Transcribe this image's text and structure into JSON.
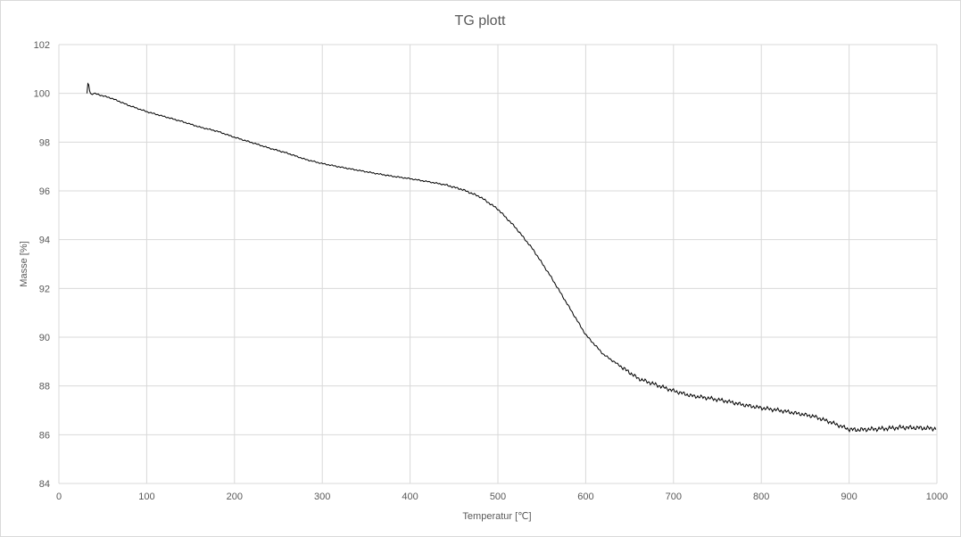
{
  "chart_data": {
    "type": "line",
    "title": "TG plott",
    "xlabel": "Temperatur  [℃]",
    "ylabel": "Masse [%]",
    "xlim": [
      0,
      1000
    ],
    "ylim": [
      84,
      102
    ],
    "xticks": [
      "0",
      "100",
      "200",
      "300",
      "400",
      "500",
      "600",
      "700",
      "800",
      "900",
      "1000"
    ],
    "yticks": [
      "84",
      "86",
      "88",
      "90",
      "92",
      "94",
      "96",
      "98",
      "100",
      "102"
    ],
    "grid": true,
    "legend": "none",
    "colors": {
      "line": "#000000",
      "grid": "#d9d9d9",
      "text": "#595959"
    },
    "series": [
      {
        "x": [
          32,
          33,
          34,
          35,
          36,
          38,
          40,
          45,
          50,
          60,
          80,
          100,
          120,
          140,
          160,
          180,
          200,
          220,
          240,
          260,
          280,
          300,
          320,
          340,
          360,
          380,
          400,
          420,
          440,
          460,
          480,
          500,
          520,
          540,
          560,
          580,
          600,
          620,
          640,
          660,
          680,
          700,
          720,
          740,
          760,
          780,
          800,
          820,
          840,
          860,
          880,
          900,
          910,
          920,
          940,
          960,
          980,
          1000
        ],
        "values": [
          100.0,
          100.4,
          100.35,
          100.1,
          100.0,
          99.95,
          100.0,
          99.95,
          99.9,
          99.8,
          99.5,
          99.25,
          99.05,
          98.85,
          98.62,
          98.45,
          98.2,
          97.98,
          97.75,
          97.55,
          97.3,
          97.12,
          96.98,
          96.85,
          96.72,
          96.6,
          96.5,
          96.38,
          96.25,
          96.05,
          95.75,
          95.25,
          94.5,
          93.6,
          92.5,
          91.3,
          90.1,
          89.3,
          88.8,
          88.3,
          88.05,
          87.8,
          87.6,
          87.5,
          87.38,
          87.22,
          87.1,
          87.0,
          86.88,
          86.75,
          86.5,
          86.22,
          86.2,
          86.22,
          86.25,
          86.3,
          86.28,
          86.25
        ]
      }
    ]
  }
}
